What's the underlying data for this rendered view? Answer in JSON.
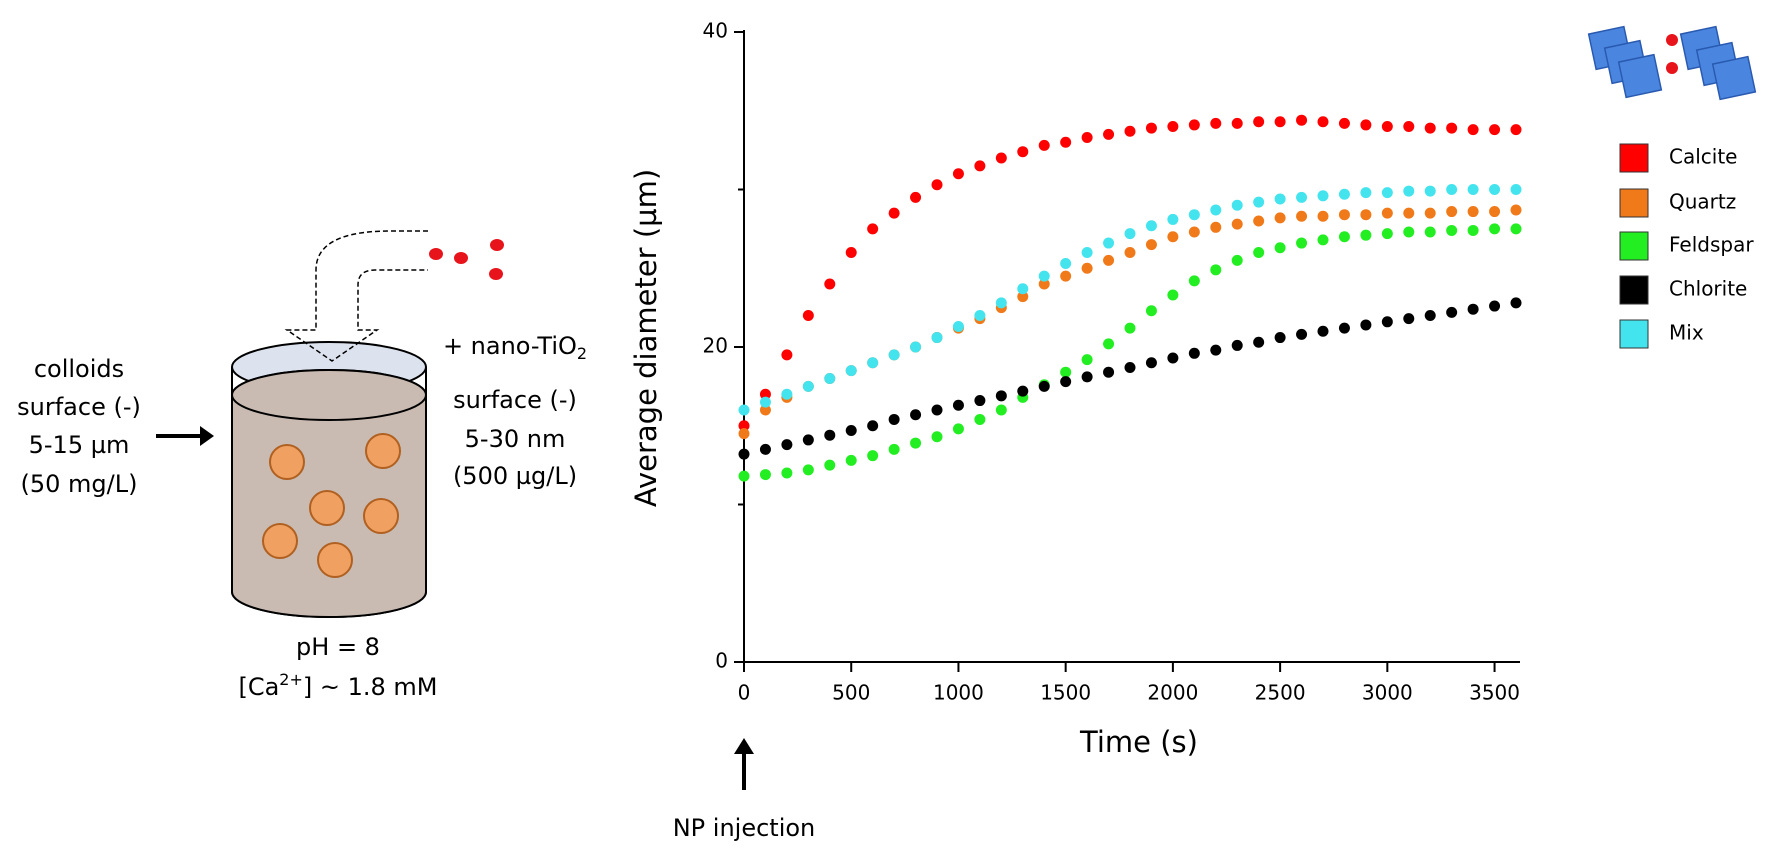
{
  "chart_data": {
    "type": "scatter",
    "x_label": "Time (s)",
    "y_label": "Average diameter (µm)",
    "xlim": [
      0,
      3600
    ],
    "xticks": [
      0,
      500,
      1000,
      1500,
      2000,
      2500,
      3000,
      3500
    ],
    "ylim": [
      0,
      40
    ],
    "yticks": [
      0,
      20,
      40
    ],
    "yminor_ticks": [
      10,
      30
    ],
    "annotation": "NP injection",
    "x": [
      0,
      100,
      200,
      300,
      400,
      500,
      600,
      700,
      800,
      900,
      1000,
      1100,
      1200,
      1300,
      1400,
      1500,
      1600,
      1700,
      1800,
      1900,
      2000,
      2100,
      2200,
      2300,
      2400,
      2500,
      2600,
      2700,
      2800,
      2900,
      3000,
      3100,
      3200,
      3300,
      3400,
      3500,
      3600
    ],
    "series": [
      {
        "name": "Calcite",
        "color": "#ff0000",
        "values": [
          15,
          17,
          19.5,
          22,
          24,
          26,
          27.5,
          28.5,
          29.5,
          30.3,
          31,
          31.5,
          32,
          32.4,
          32.8,
          33,
          33.3,
          33.5,
          33.7,
          33.9,
          34,
          34.1,
          34.2,
          34.2,
          34.3,
          34.3,
          34.4,
          34.3,
          34.2,
          34.1,
          34,
          34,
          33.9,
          33.9,
          33.8,
          33.8,
          33.8
        ]
      },
      {
        "name": "Quartz",
        "color": "#f07a1a",
        "values": [
          14.5,
          16,
          16.8,
          17.5,
          18,
          18.5,
          19,
          19.5,
          20,
          20.6,
          21.2,
          21.8,
          22.5,
          23.2,
          24,
          24.5,
          25,
          25.5,
          26,
          26.5,
          27,
          27.3,
          27.6,
          27.8,
          28,
          28.2,
          28.3,
          28.3,
          28.4,
          28.4,
          28.5,
          28.5,
          28.5,
          28.6,
          28.6,
          28.6,
          28.7
        ]
      },
      {
        "name": "Feldspar",
        "color": "#22ee22",
        "values": [
          11.8,
          11.9,
          12,
          12.2,
          12.5,
          12.8,
          13.1,
          13.5,
          13.9,
          14.3,
          14.8,
          15.4,
          16,
          16.8,
          17.6,
          18.4,
          19.2,
          20.2,
          21.2,
          22.3,
          23.3,
          24.2,
          24.9,
          25.5,
          26,
          26.3,
          26.6,
          26.8,
          27,
          27.1,
          27.2,
          27.3,
          27.3,
          27.4,
          27.4,
          27.5,
          27.5
        ]
      },
      {
        "name": "Chlorite",
        "color": "#000000",
        "values": [
          13.2,
          13.5,
          13.8,
          14.1,
          14.4,
          14.7,
          15,
          15.4,
          15.7,
          16,
          16.3,
          16.6,
          16.9,
          17.2,
          17.5,
          17.8,
          18.1,
          18.4,
          18.7,
          19,
          19.3,
          19.6,
          19.8,
          20.1,
          20.3,
          20.6,
          20.8,
          21,
          21.2,
          21.4,
          21.6,
          21.8,
          22,
          22.2,
          22.4,
          22.6,
          22.8
        ]
      },
      {
        "name": "Mix",
        "color": "#44e4ee",
        "values": [
          16,
          16.5,
          17,
          17.5,
          18,
          18.5,
          19,
          19.5,
          20,
          20.6,
          21.3,
          22,
          22.8,
          23.7,
          24.5,
          25.3,
          26,
          26.6,
          27.2,
          27.7,
          28.1,
          28.4,
          28.7,
          29,
          29.2,
          29.4,
          29.5,
          29.6,
          29.7,
          29.8,
          29.8,
          29.9,
          29.9,
          30,
          30,
          30,
          30
        ]
      }
    ]
  },
  "diagram": {
    "colloids": [
      "colloids",
      "surface (-)",
      "5-15 µm",
      "(50 mg/L)"
    ],
    "nano": {
      "main": "+ nano-TiO",
      "sub": "2",
      "lines": [
        "surface (-)",
        "5-30 nm",
        "(500 µg/L)"
      ]
    },
    "ph": "pH = 8",
    "ca": {
      "pre": "[Ca",
      "sup": "2+",
      "post": "] ~ 1.8 mM"
    }
  }
}
